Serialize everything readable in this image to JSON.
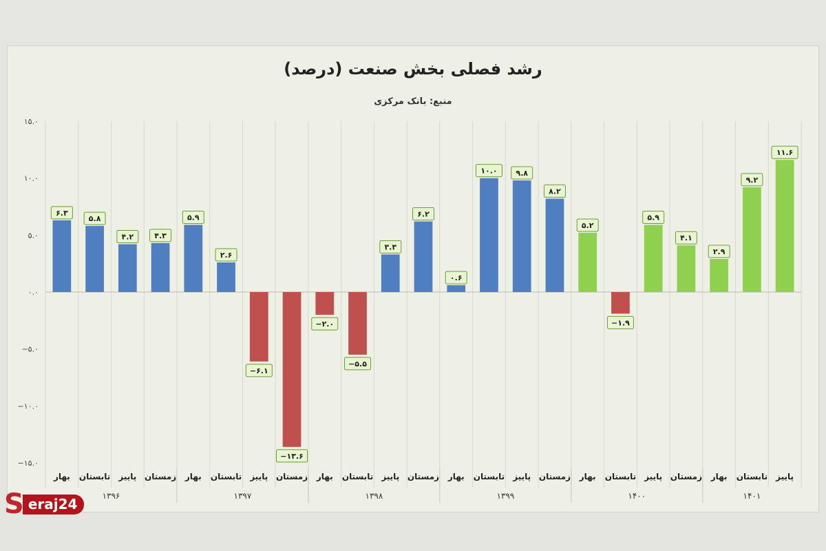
{
  "watermark": {
    "letter": "S",
    "text": "eraj24"
  },
  "chart_data": {
    "type": "bar",
    "title": "رشد فصلی بخش صنعت (درصد)",
    "subtitle": "منبع: بانک مرکزی",
    "ylim": [
      -15,
      15
    ],
    "y_ticks": [
      15,
      10,
      5,
      0,
      -5,
      -10,
      -15
    ],
    "y_tick_labels": [
      "۱۵.۰",
      "۱۰.۰",
      "۵.۰",
      "۰.۰",
      "−۵.۰",
      "−۱۰.۰",
      "−۱۵.۰"
    ],
    "grid": "vertical",
    "colors": {
      "1396-1399": "#4f7fc1",
      "negative": "#c0504d",
      "1400-1401": "#8fd14f",
      "label_bg": "#e8f5d0",
      "label_border": "#6a9a3a"
    },
    "categories": [
      "بهار",
      "تابستان",
      "پاییز",
      "زمستان",
      "بهار",
      "تابستان",
      "پاییز",
      "زمستان",
      "بهار",
      "تابستان",
      "پاییز",
      "زمستان",
      "بهار",
      "تابستان",
      "پاییز",
      "زمستان",
      "بهار",
      "تابستان",
      "پاییز",
      "زمستان",
      "بهار",
      "تابستان",
      "پاییز"
    ],
    "groups": [
      "۱۳۹۶",
      "۱۳۹۷",
      "۱۳۹۸",
      "۱۳۹۹",
      "۱۴۰۰",
      "۱۴۰۱"
    ],
    "values": [
      6.3,
      5.8,
      4.2,
      4.3,
      5.9,
      2.6,
      -6.1,
      -13.6,
      -2.0,
      -5.5,
      3.3,
      6.2,
      0.6,
      10.0,
      9.8,
      8.2,
      5.2,
      -1.9,
      5.9,
      4.1,
      2.9,
      9.2,
      11.6
    ],
    "data_labels": [
      "۶.۳",
      "۵.۸",
      "۴.۲",
      "۴.۳",
      "۵.۹",
      "۲.۶",
      "−۶.۱",
      "−۱۳.۶",
      "−۲.۰",
      "−۵.۵",
      "۳.۳",
      "۶.۲",
      "۰.۶",
      "۱۰.۰",
      "۹.۸",
      "۸.۲",
      "۵.۲",
      "−۱.۹",
      "۵.۹",
      "۴.۱",
      "۲.۹",
      "۹.۲",
      "۱۱.۶"
    ]
  }
}
